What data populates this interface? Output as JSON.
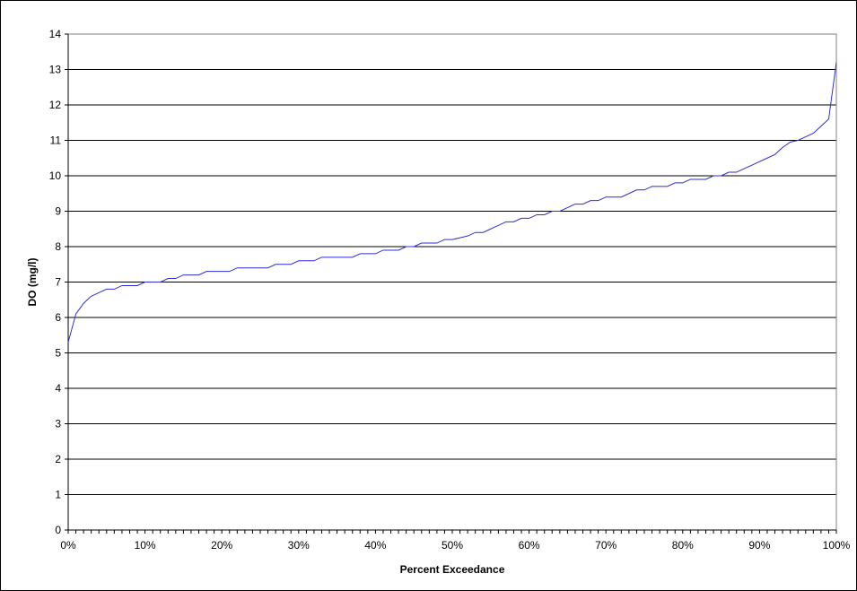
{
  "chart_data": {
    "type": "line",
    "title": "",
    "xlabel": "Percent Exceedance",
    "ylabel": "DO (mg/l)",
    "xlim": [
      0,
      100
    ],
    "ylim": [
      0,
      14
    ],
    "x_ticks": [
      "0%",
      "10%",
      "20%",
      "30%",
      "40%",
      "50%",
      "60%",
      "70%",
      "80%",
      "90%",
      "100%"
    ],
    "y_ticks": [
      "0",
      "1",
      "2",
      "3",
      "4",
      "5",
      "6",
      "7",
      "8",
      "9",
      "10",
      "11",
      "12",
      "13",
      "14"
    ],
    "grid": "horizontal",
    "legend": "none",
    "line_color": "#2e2ed6",
    "series": [
      {
        "x": [
          0,
          1,
          2,
          3,
          4,
          5,
          6,
          7,
          8,
          9,
          10,
          11,
          12,
          13,
          14,
          15,
          16,
          17,
          18,
          19,
          20,
          21,
          22,
          23,
          24,
          25,
          26,
          27,
          28,
          29,
          30,
          31,
          32,
          33,
          34,
          35,
          36,
          37,
          38,
          39,
          40,
          41,
          42,
          43,
          44,
          45,
          46,
          47,
          48,
          49,
          50,
          51,
          52,
          53,
          54,
          55,
          56,
          57,
          58,
          59,
          60,
          61,
          62,
          63,
          64,
          65,
          66,
          67,
          68,
          69,
          70,
          71,
          72,
          73,
          74,
          75,
          76,
          77,
          78,
          79,
          80,
          81,
          82,
          83,
          84,
          85,
          86,
          87,
          88,
          89,
          90,
          91,
          92,
          93,
          94,
          95,
          96,
          97,
          98,
          99,
          100
        ],
        "values": [
          5.3,
          6.1,
          6.4,
          6.6,
          6.7,
          6.8,
          6.8,
          6.9,
          6.9,
          6.9,
          7.0,
          7.0,
          7.0,
          7.1,
          7.1,
          7.2,
          7.2,
          7.2,
          7.3,
          7.3,
          7.3,
          7.3,
          7.4,
          7.4,
          7.4,
          7.4,
          7.4,
          7.5,
          7.5,
          7.5,
          7.6,
          7.6,
          7.6,
          7.7,
          7.7,
          7.7,
          7.7,
          7.7,
          7.8,
          7.8,
          7.8,
          7.9,
          7.9,
          7.9,
          8.0,
          8.0,
          8.1,
          8.1,
          8.1,
          8.2,
          8.2,
          8.25,
          8.3,
          8.4,
          8.4,
          8.5,
          8.6,
          8.7,
          8.7,
          8.8,
          8.8,
          8.9,
          8.9,
          9.0,
          9.0,
          9.1,
          9.2,
          9.2,
          9.3,
          9.3,
          9.4,
          9.4,
          9.4,
          9.5,
          9.6,
          9.6,
          9.7,
          9.7,
          9.7,
          9.8,
          9.8,
          9.9,
          9.9,
          9.9,
          10.0,
          10.0,
          10.1,
          10.1,
          10.2,
          10.3,
          10.4,
          10.5,
          10.6,
          10.8,
          10.95,
          11.0,
          11.1,
          11.2,
          11.4,
          11.6,
          13.2
        ]
      }
    ]
  }
}
